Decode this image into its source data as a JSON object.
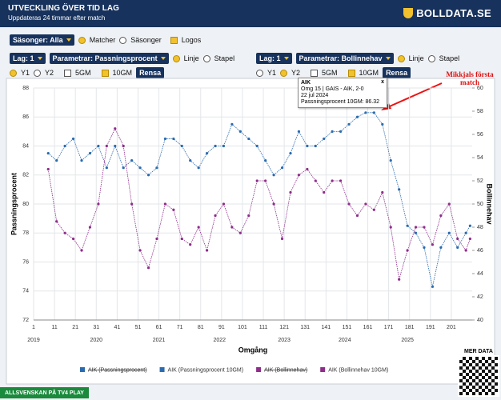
{
  "header": {
    "title": "UTVECKLING ÖVER TID LAG",
    "subtitle": "Uppdateras 24 timmar efter match",
    "logo": "BOLLDATA.SE"
  },
  "controls": {
    "seasons": "Säsonger: Alla",
    "matches": "Matcher",
    "seasons_radio": "Säsonger",
    "logos": "Logos",
    "left": {
      "team": "Lag: 1",
      "param": "Parametrar: Passningsprocent",
      "line": "Linje",
      "bar": "Stapel",
      "y1": "Y1",
      "y2": "Y2",
      "gm5": "5GM",
      "gm10": "10GM",
      "clear": "Rensa"
    },
    "right": {
      "team": "Lag: 1",
      "param": "Parametrar: Bollinnehav",
      "line": "Linje",
      "bar": "Stapel",
      "y1": "Y1",
      "y2": "Y2",
      "gm5": "5GM",
      "gm10": "10GM",
      "clear": "Rensa"
    }
  },
  "chart_data": {
    "type": "line",
    "xlabel": "Omgång",
    "ylabel": "Passningsprocent",
    "y2label": "Bollinnehav",
    "x": [
      8,
      12,
      16,
      20,
      24,
      28,
      32,
      36,
      40,
      44,
      48,
      52,
      56,
      60,
      64,
      68,
      72,
      76,
      80,
      84,
      88,
      92,
      96,
      100,
      104,
      108,
      112,
      116,
      120,
      124,
      128,
      132,
      136,
      140,
      144,
      148,
      152,
      156,
      160,
      164,
      168,
      172,
      176,
      180,
      184,
      188,
      192,
      196,
      200,
      204,
      208,
      210
    ],
    "xlim": [
      1,
      211
    ],
    "xticks": [
      1,
      11,
      21,
      31,
      41,
      51,
      61,
      71,
      81,
      91,
      101,
      111,
      121,
      131,
      141,
      151,
      161,
      171,
      181,
      191,
      201
    ],
    "year_ticks": [
      {
        "value": 1,
        "label": "2019"
      },
      {
        "value": 31,
        "label": "2020"
      },
      {
        "value": 61,
        "label": "2021"
      },
      {
        "value": 90,
        "label": "2022"
      },
      {
        "value": 121,
        "label": "2023"
      },
      {
        "value": 150,
        "label": "2024"
      },
      {
        "value": 180,
        "label": "2025"
      }
    ],
    "ylim": [
      72,
      88
    ],
    "yticks": [
      72,
      74,
      76,
      78,
      80,
      82,
      84,
      86,
      88
    ],
    "y2lim": [
      40,
      60
    ],
    "y2ticks": [
      40,
      42,
      44,
      46,
      48,
      50,
      52,
      54,
      56,
      58,
      60
    ],
    "grid": true,
    "series": [
      {
        "name": "AIK (Passningsprocent 10GM)",
        "color": "#2a6bb0",
        "axis": "y",
        "values": [
          83.5,
          83,
          84,
          84.5,
          83,
          83.5,
          84,
          82.5,
          84,
          82.5,
          83,
          82.5,
          82,
          82.5,
          84.5,
          84.5,
          84,
          83,
          82.5,
          83.5,
          84,
          84,
          85.5,
          85,
          84.5,
          84,
          83,
          82,
          82.5,
          83.5,
          85,
          84,
          84,
          84.5,
          85,
          85,
          85.5,
          86,
          86.3,
          86.3,
          85.5,
          83,
          81,
          78.5,
          78,
          77,
          74.3,
          77,
          78,
          77,
          78,
          78.5
        ]
      },
      {
        "name": "AIK (Bollinnehav 10GM)",
        "color": "#8e2d8a",
        "axis": "y2",
        "values": [
          53,
          48.5,
          47.5,
          47,
          46,
          48,
          50,
          55,
          56.5,
          55,
          50,
          46,
          44.5,
          47,
          50,
          49.5,
          47,
          46.5,
          48,
          46,
          49,
          50,
          48,
          47.5,
          49,
          52,
          52,
          50,
          47,
          51,
          52.5,
          53,
          52,
          51,
          52,
          52,
          50,
          49,
          50,
          49.5,
          51,
          48,
          43.5,
          46,
          48,
          48,
          46.5,
          49,
          50,
          47,
          46,
          47
        ]
      }
    ],
    "hidden_legend": [
      {
        "name": "AIK (Passningsprocent)",
        "color": "#2a6bb0"
      },
      {
        "name": "AIK (Bollinnehav)",
        "color": "#8e2d8a"
      }
    ],
    "tooltip": {
      "team": "AIK",
      "match": "Omg 15 | GAIS - AIK, 2-0",
      "date": "22 jul 2024",
      "value": "Passningsprocent 10GM: 86.32",
      "close": "x"
    },
    "annotation": "Mikkjals första match"
  },
  "footer": {
    "tv4": "ALLSVENSKAN PÅ TV4 PLAY",
    "more": "MER DATA"
  }
}
